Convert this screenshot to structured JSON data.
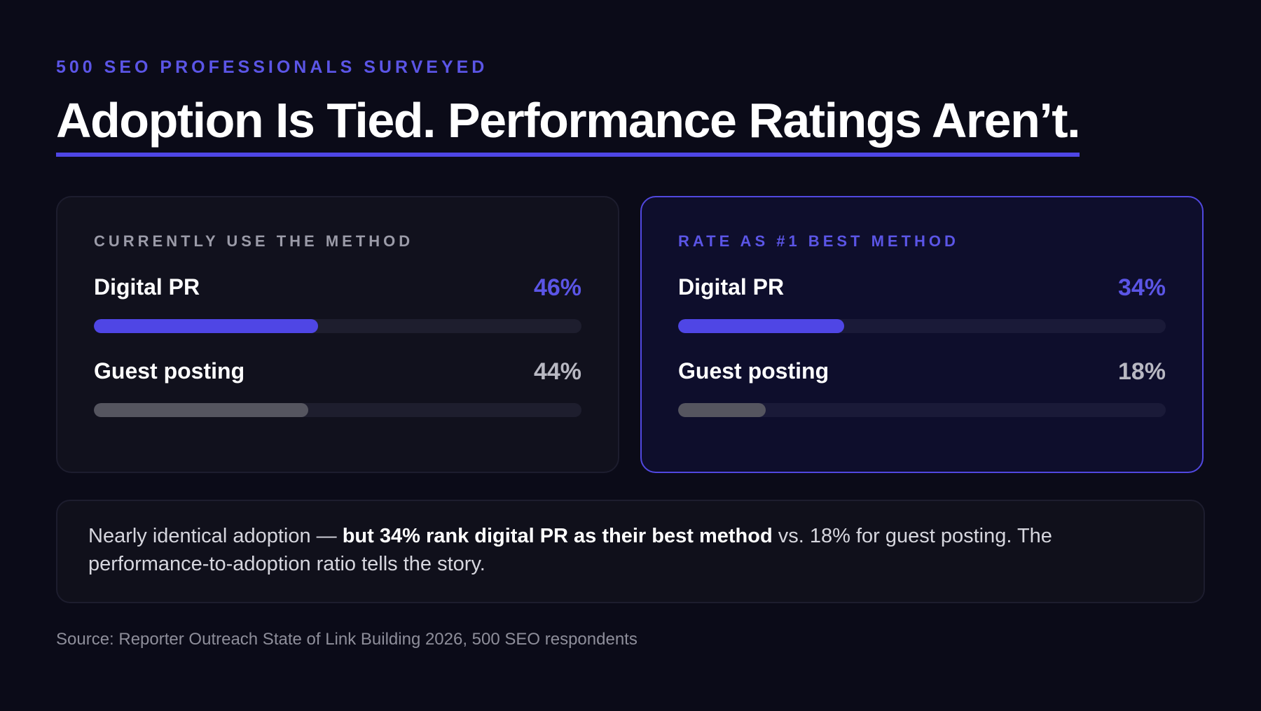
{
  "eyebrow": "500 SEO PROFESSIONALS SURVEYED",
  "headline": "Adoption Is Tied. Performance Ratings Aren’t.",
  "colors": {
    "background": "#0b0b18",
    "accent": "#4f46e5",
    "accent_text": "#5b55e6",
    "muted_bar": "#55555f"
  },
  "chart_data": [
    {
      "type": "bar",
      "title": "CURRENTLY USE THE METHOD",
      "categories": [
        "Digital PR",
        "Guest posting"
      ],
      "values": [
        46,
        44
      ],
      "value_labels": [
        "46%",
        "44%"
      ],
      "unit": "%",
      "ylim": [
        0,
        100
      ]
    },
    {
      "type": "bar",
      "title": "RATE AS #1 BEST METHOD",
      "categories": [
        "Digital PR",
        "Guest posting"
      ],
      "values": [
        34,
        18
      ],
      "value_labels": [
        "34%",
        "18%"
      ],
      "unit": "%",
      "ylim": [
        0,
        100
      ]
    }
  ],
  "note": {
    "lead": "Nearly identical adoption — ",
    "emphasis": "but 34% rank digital PR as their best method",
    "tail": " vs. 18% for guest posting. The performance-to-adoption ratio tells the story."
  },
  "source": "Source: Reporter Outreach State of Link Building 2026, 500 SEO respondents"
}
